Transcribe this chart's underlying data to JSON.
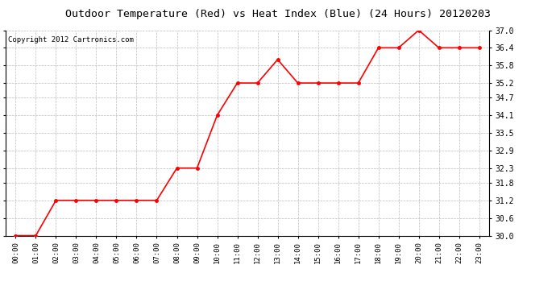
{
  "title": "Outdoor Temperature (Red) vs Heat Index (Blue) (24 Hours) 20120203",
  "copyright": "Copyright 2012 Cartronics.com",
  "x_labels": [
    "00:00",
    "01:00",
    "02:00",
    "03:00",
    "04:00",
    "05:00",
    "06:00",
    "07:00",
    "08:00",
    "09:00",
    "10:00",
    "11:00",
    "12:00",
    "13:00",
    "14:00",
    "15:00",
    "16:00",
    "17:00",
    "18:00",
    "19:00",
    "20:00",
    "21:00",
    "22:00",
    "23:00"
  ],
  "temp_values": [
    30.0,
    30.0,
    31.2,
    31.2,
    31.2,
    31.2,
    31.2,
    31.2,
    32.3,
    32.3,
    34.1,
    35.2,
    35.2,
    36.0,
    35.2,
    35.2,
    35.2,
    35.2,
    36.4,
    36.4,
    37.0,
    36.4,
    36.4,
    36.4
  ],
  "ylim_min": 30.0,
  "ylim_max": 37.0,
  "yticks": [
    30.0,
    30.6,
    31.2,
    31.8,
    32.3,
    32.9,
    33.5,
    34.1,
    34.7,
    35.2,
    35.8,
    36.4,
    37.0
  ],
  "line_color": "#ff0000",
  "marker_color": "#ff0000",
  "bg_color": "#ffffff",
  "grid_color": "#bbbbbb",
  "title_fontsize": 9.5,
  "copyright_fontsize": 6.5,
  "tick_fontsize": 6.5,
  "ytick_fontsize": 7
}
